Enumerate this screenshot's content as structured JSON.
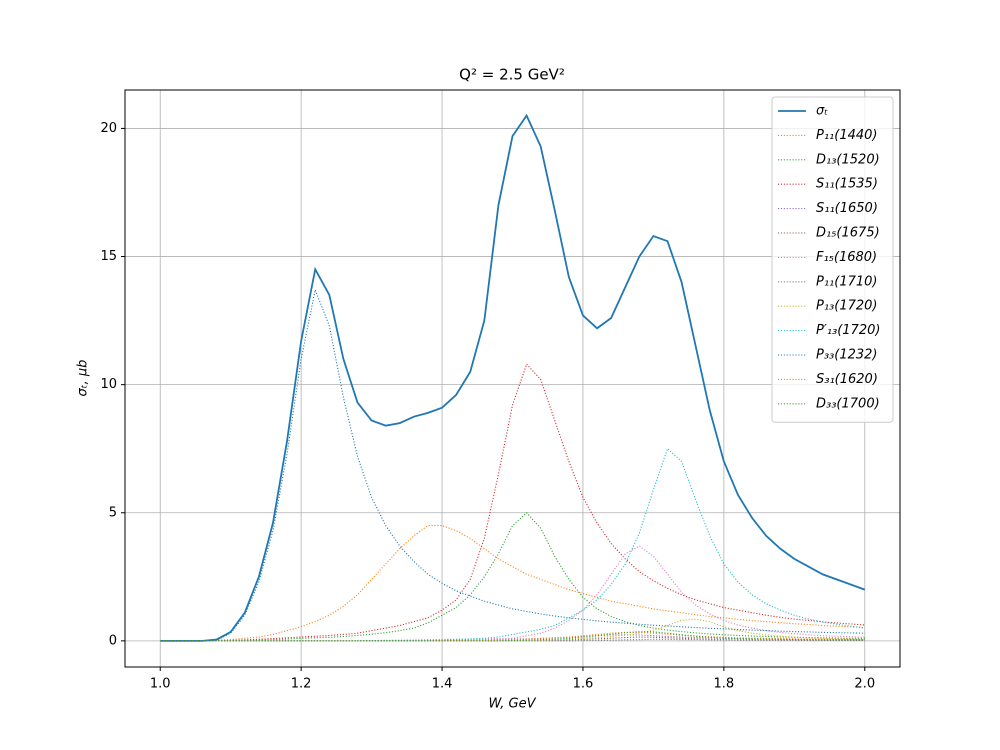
{
  "chart_data": {
    "type": "line",
    "title": "Q² = 2.5 GeV²",
    "x_label": "W, GeV",
    "y_label": "σₜ, μb",
    "x": [
      1.0,
      1.02,
      1.04,
      1.06,
      1.08,
      1.1,
      1.12,
      1.14,
      1.16,
      1.18,
      1.2,
      1.22,
      1.24,
      1.26,
      1.28,
      1.3,
      1.32,
      1.34,
      1.36,
      1.38,
      1.4,
      1.42,
      1.44,
      1.46,
      1.48,
      1.5,
      1.52,
      1.54,
      1.56,
      1.58,
      1.6,
      1.62,
      1.64,
      1.66,
      1.68,
      1.7,
      1.72,
      1.74,
      1.76,
      1.78,
      1.8,
      1.82,
      1.84,
      1.86,
      1.88,
      1.9,
      1.92,
      1.94,
      1.96,
      1.98,
      2.0
    ],
    "xlim": [
      0.95,
      2.05
    ],
    "ylim": [
      -1.02,
      21.5
    ],
    "xticks": [
      {
        "value": 1,
        "label": "1.0"
      },
      1.2,
      1.4,
      1.6,
      1.8,
      {
        "value": 2,
        "label": "2.0"
      }
    ],
    "yticks": [
      0,
      5,
      10,
      15,
      20
    ],
    "grid": true,
    "legend": "upper right",
    "series": [
      {
        "name": "σₜ",
        "color": "#1f77b4",
        "style": "solid",
        "values": [
          0,
          0,
          0,
          0,
          0.05,
          0.35,
          1.1,
          2.5,
          4.6,
          7.8,
          11.7,
          14.5,
          13.5,
          11,
          9.3,
          8.6,
          8.4,
          8.5,
          8.75,
          8.9,
          9.1,
          9.6,
          10.5,
          12.5,
          17,
          19.7,
          20.5,
          19.3,
          16.8,
          14.2,
          12.7,
          12.2,
          12.6,
          13.8,
          15,
          15.8,
          15.6,
          14,
          11.5,
          9,
          7,
          5.7,
          4.8,
          4.1,
          3.6,
          3.2,
          2.9,
          2.6,
          2.4,
          2.2,
          2
        ]
      },
      {
        "name": "P₁₁(1440)",
        "color": "#ff7f0e",
        "style": "dotted",
        "values": [
          0,
          0,
          0,
          0,
          0.02,
          0.05,
          0.1,
          0.15,
          0.25,
          0.4,
          0.55,
          0.75,
          1,
          1.35,
          1.8,
          2.4,
          3,
          3.6,
          4.1,
          4.5,
          4.5,
          4.3,
          4,
          3.6,
          3.2,
          2.9,
          2.6,
          2.4,
          2.2,
          2,
          1.85,
          1.7,
          1.55,
          1.45,
          1.35,
          1.25,
          1.17,
          1.1,
          1.02,
          0.95,
          0.9,
          0.84,
          0.79,
          0.75,
          0.71,
          0.67,
          0.64,
          0.6,
          0.57,
          0.55,
          0.52
        ]
      },
      {
        "name": "D₁₃(1520)",
        "color": "#2ca02c",
        "style": "dotted",
        "values": [
          0,
          0,
          0,
          0,
          0,
          0.01,
          0.02,
          0.03,
          0.05,
          0.07,
          0.1,
          0.12,
          0.14,
          0.17,
          0.21,
          0.26,
          0.32,
          0.4,
          0.5,
          0.7,
          1,
          1.3,
          1.8,
          2.5,
          3.4,
          4.5,
          5,
          4.4,
          3.3,
          2.4,
          1.7,
          1.25,
          0.95,
          0.75,
          0.6,
          0.5,
          0.42,
          0.36,
          0.31,
          0.27,
          0.24,
          0.21,
          0.19,
          0.17,
          0.15,
          0.14,
          0.13,
          0.12,
          0.11,
          0.1,
          0.1
        ]
      },
      {
        "name": "S₁₁(1535)",
        "color": "#d62728",
        "style": "dotted",
        "values": [
          0,
          0,
          0,
          0,
          0,
          0.02,
          0.04,
          0.06,
          0.09,
          0.12,
          0.15,
          0.18,
          0.21,
          0.25,
          0.3,
          0.4,
          0.5,
          0.6,
          0.75,
          0.9,
          1.2,
          1.6,
          2.4,
          4,
          6.5,
          9.2,
          10.8,
          10.2,
          8.6,
          7,
          5.6,
          4.6,
          3.8,
          3.2,
          2.7,
          2.35,
          2.05,
          1.8,
          1.6,
          1.45,
          1.3,
          1.2,
          1.1,
          1,
          0.92,
          0.85,
          0.8,
          0.74,
          0.7,
          0.66,
          0.62
        ]
      },
      {
        "name": "S₁₁(1650)",
        "color": "#9467bd",
        "style": "dotted",
        "values": [
          0,
          0,
          0,
          0,
          0,
          0,
          0,
          0,
          0,
          0,
          0,
          0,
          0,
          0,
          0,
          0.01,
          0.01,
          0.01,
          0.02,
          0.02,
          0.03,
          0.03,
          0.04,
          0.05,
          0.06,
          0.07,
          0.08,
          0.1,
          0.12,
          0.14,
          0.17,
          0.2,
          0.23,
          0.24,
          0.23,
          0.2,
          0.17,
          0.15,
          0.13,
          0.11,
          0.1,
          0.09,
          0.08,
          0.07,
          0.07,
          0.06,
          0.06,
          0.05,
          0.05,
          0.05,
          0.04
        ]
      },
      {
        "name": "D₁₅(1675)",
        "color": "#8c564b",
        "style": "dotted",
        "values": [
          0,
          0,
          0,
          0,
          0,
          0,
          0,
          0,
          0,
          0,
          0,
          0,
          0,
          0,
          0,
          0,
          0,
          0,
          0,
          0,
          0,
          0,
          0,
          0,
          0,
          0.01,
          0.02,
          0.02,
          0.03,
          0.04,
          0.06,
          0.08,
          0.1,
          0.13,
          0.15,
          0.14,
          0.12,
          0.1,
          0.08,
          0.06,
          0.05,
          0.04,
          0.04,
          0.03,
          0.03,
          0.03,
          0.02,
          0.02,
          0.02,
          0.02,
          0.02
        ]
      },
      {
        "name": "F₁₅(1680)",
        "color": "#e377c2",
        "style": "dotted",
        "values": [
          0,
          0,
          0,
          0,
          0,
          0,
          0,
          0,
          0,
          0,
          0,
          0,
          0,
          0,
          0,
          0.01,
          0.01,
          0.02,
          0.02,
          0.03,
          0.04,
          0.05,
          0.06,
          0.07,
          0.09,
          0.1,
          0.2,
          0.3,
          0.5,
          0.8,
          1.2,
          1.8,
          2.6,
          3.4,
          3.7,
          3.3,
          2.6,
          1.9,
          1.4,
          1.05,
          0.8,
          0.62,
          0.5,
          0.4,
          0.33,
          0.28,
          0.24,
          0.2,
          0.18,
          0.16,
          0.14
        ]
      },
      {
        "name": "P₁₁(1710)",
        "color": "#7f7f7f",
        "style": "dotted",
        "values": [
          0,
          0,
          0,
          0,
          0,
          0,
          0,
          0,
          0,
          0,
          0,
          0,
          0,
          0,
          0,
          0,
          0,
          0,
          0,
          0,
          0,
          0,
          0,
          0,
          0,
          0,
          0,
          0,
          0,
          0,
          0.01,
          0.02,
          0.03,
          0.04,
          0.05,
          0.06,
          0.06,
          0.05,
          0.05,
          0.04,
          0.04,
          0.03,
          0.03,
          0.03,
          0.03,
          0.02,
          0.02,
          0.02,
          0.02,
          0.02,
          0.02
        ]
      },
      {
        "name": "P₁₃(1720)",
        "color": "#bcbd22",
        "style": "dotted",
        "values": [
          0,
          0,
          0,
          0,
          0,
          0,
          0,
          0,
          0,
          0,
          0,
          0,
          0,
          0,
          0,
          0,
          0,
          0,
          0,
          0,
          0,
          0,
          0,
          0,
          0,
          0.01,
          0.02,
          0.03,
          0.05,
          0.07,
          0.1,
          0.13,
          0.17,
          0.22,
          0.3,
          0.42,
          0.6,
          0.8,
          0.85,
          0.75,
          0.55,
          0.4,
          0.3,
          0.23,
          0.18,
          0.14,
          0.12,
          0.1,
          0.08,
          0.07,
          0.06
        ]
      },
      {
        "name": "P′₁₃(1720)",
        "color": "#17becf",
        "style": "dotted",
        "values": [
          0,
          0,
          0,
          0,
          0,
          0,
          0,
          0,
          0,
          0,
          0,
          0,
          0,
          0,
          0,
          0.01,
          0.02,
          0.02,
          0.03,
          0.04,
          0.05,
          0.06,
          0.08,
          0.1,
          0.15,
          0.25,
          0.35,
          0.45,
          0.6,
          0.9,
          1.2,
          1.6,
          2.2,
          3,
          4.2,
          5.9,
          7.5,
          7,
          5.5,
          4.1,
          3,
          2.3,
          1.8,
          1.45,
          1.2,
          1,
          0.85,
          0.74,
          0.65,
          0.57,
          0.5
        ]
      },
      {
        "name": "P₃₃(1232)",
        "color": "#1f77b4",
        "style": "dotted",
        "values": [
          0,
          0,
          0,
          0,
          0.02,
          0.3,
          1,
          2.3,
          4.3,
          7.3,
          11,
          13.7,
          12.3,
          9.5,
          7.2,
          5.6,
          4.5,
          3.7,
          3.1,
          2.6,
          2.25,
          1.95,
          1.75,
          1.55,
          1.4,
          1.25,
          1.15,
          1.05,
          0.97,
          0.9,
          0.84,
          0.78,
          0.73,
          0.69,
          0.65,
          0.61,
          0.58,
          0.55,
          0.52,
          0.49,
          0.47,
          0.44,
          0.42,
          0.4,
          0.38,
          0.36,
          0.35,
          0.33,
          0.32,
          0.31,
          0.3
        ]
      },
      {
        "name": "S₃₁(1620)",
        "color": "#ff7f0e",
        "style": "dotted",
        "values": [
          0,
          0,
          0,
          0,
          0,
          0,
          0,
          0,
          0,
          0,
          0,
          0,
          0,
          0,
          0,
          0,
          0,
          0,
          0,
          0,
          0.01,
          0.02,
          0.02,
          0.03,
          0.04,
          0.05,
          0.07,
          0.09,
          0.12,
          0.15,
          0.2,
          0.25,
          0.3,
          0.33,
          0.33,
          0.3,
          0.26,
          0.22,
          0.19,
          0.16,
          0.14,
          0.12,
          0.11,
          0.1,
          0.09,
          0.08,
          0.07,
          0.07,
          0.06,
          0.06,
          0.05
        ]
      },
      {
        "name": "D₃₃(1700)",
        "color": "#2ca02c",
        "style": "dotted",
        "values": [
          0,
          0,
          0,
          0,
          0,
          0,
          0,
          0,
          0,
          0,
          0,
          0,
          0,
          0,
          0,
          0,
          0,
          0,
          0,
          0,
          0,
          0,
          0,
          0,
          0,
          0.02,
          0.03,
          0.05,
          0.07,
          0.1,
          0.15,
          0.2,
          0.26,
          0.32,
          0.36,
          0.35,
          0.3,
          0.24,
          0.18,
          0.14,
          0.11,
          0.09,
          0.08,
          0.07,
          0.06,
          0.05,
          0.05,
          0.04,
          0.04,
          0.04,
          0.03
        ]
      }
    ]
  }
}
